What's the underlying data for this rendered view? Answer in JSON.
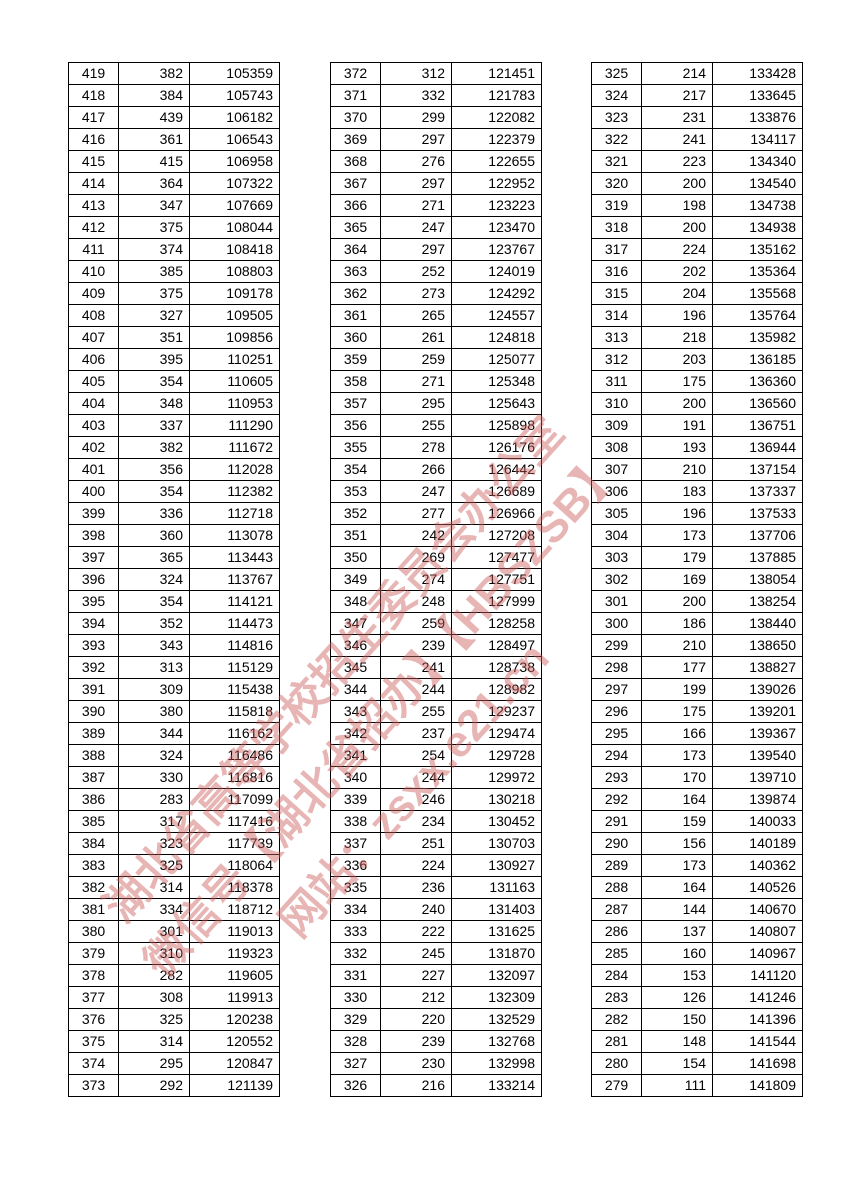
{
  "tables": [
    {
      "rows": [
        [
          419,
          382,
          105359
        ],
        [
          418,
          384,
          105743
        ],
        [
          417,
          439,
          106182
        ],
        [
          416,
          361,
          106543
        ],
        [
          415,
          415,
          106958
        ],
        [
          414,
          364,
          107322
        ],
        [
          413,
          347,
          107669
        ],
        [
          412,
          375,
          108044
        ],
        [
          411,
          374,
          108418
        ],
        [
          410,
          385,
          108803
        ],
        [
          409,
          375,
          109178
        ],
        [
          408,
          327,
          109505
        ],
        [
          407,
          351,
          109856
        ],
        [
          406,
          395,
          110251
        ],
        [
          405,
          354,
          110605
        ],
        [
          404,
          348,
          110953
        ],
        [
          403,
          337,
          111290
        ],
        [
          402,
          382,
          111672
        ],
        [
          401,
          356,
          112028
        ],
        [
          400,
          354,
          112382
        ],
        [
          399,
          336,
          112718
        ],
        [
          398,
          360,
          113078
        ],
        [
          397,
          365,
          113443
        ],
        [
          396,
          324,
          113767
        ],
        [
          395,
          354,
          114121
        ],
        [
          394,
          352,
          114473
        ],
        [
          393,
          343,
          114816
        ],
        [
          392,
          313,
          115129
        ],
        [
          391,
          309,
          115438
        ],
        [
          390,
          380,
          115818
        ],
        [
          389,
          344,
          116162
        ],
        [
          388,
          324,
          116486
        ],
        [
          387,
          330,
          116816
        ],
        [
          386,
          283,
          117099
        ],
        [
          385,
          317,
          117416
        ],
        [
          384,
          323,
          117739
        ],
        [
          383,
          325,
          118064
        ],
        [
          382,
          314,
          118378
        ],
        [
          381,
          334,
          118712
        ],
        [
          380,
          301,
          119013
        ],
        [
          379,
          310,
          119323
        ],
        [
          378,
          282,
          119605
        ],
        [
          377,
          308,
          119913
        ],
        [
          376,
          325,
          120238
        ],
        [
          375,
          314,
          120552
        ],
        [
          374,
          295,
          120847
        ],
        [
          373,
          292,
          121139
        ]
      ]
    },
    {
      "rows": [
        [
          372,
          312,
          121451
        ],
        [
          371,
          332,
          121783
        ],
        [
          370,
          299,
          122082
        ],
        [
          369,
          297,
          122379
        ],
        [
          368,
          276,
          122655
        ],
        [
          367,
          297,
          122952
        ],
        [
          366,
          271,
          123223
        ],
        [
          365,
          247,
          123470
        ],
        [
          364,
          297,
          123767
        ],
        [
          363,
          252,
          124019
        ],
        [
          362,
          273,
          124292
        ],
        [
          361,
          265,
          124557
        ],
        [
          360,
          261,
          124818
        ],
        [
          359,
          259,
          125077
        ],
        [
          358,
          271,
          125348
        ],
        [
          357,
          295,
          125643
        ],
        [
          356,
          255,
          125898
        ],
        [
          355,
          278,
          126176
        ],
        [
          354,
          266,
          126442
        ],
        [
          353,
          247,
          126689
        ],
        [
          352,
          277,
          126966
        ],
        [
          351,
          242,
          127208
        ],
        [
          350,
          269,
          127477
        ],
        [
          349,
          274,
          127751
        ],
        [
          348,
          248,
          127999
        ],
        [
          347,
          259,
          128258
        ],
        [
          346,
          239,
          128497
        ],
        [
          345,
          241,
          128738
        ],
        [
          344,
          244,
          128982
        ],
        [
          343,
          255,
          129237
        ],
        [
          342,
          237,
          129474
        ],
        [
          341,
          254,
          129728
        ],
        [
          340,
          244,
          129972
        ],
        [
          339,
          246,
          130218
        ],
        [
          338,
          234,
          130452
        ],
        [
          337,
          251,
          130703
        ],
        [
          336,
          224,
          130927
        ],
        [
          335,
          236,
          131163
        ],
        [
          334,
          240,
          131403
        ],
        [
          333,
          222,
          131625
        ],
        [
          332,
          245,
          131870
        ],
        [
          331,
          227,
          132097
        ],
        [
          330,
          212,
          132309
        ],
        [
          329,
          220,
          132529
        ],
        [
          328,
          239,
          132768
        ],
        [
          327,
          230,
          132998
        ],
        [
          326,
          216,
          133214
        ]
      ]
    },
    {
      "rows": [
        [
          325,
          214,
          133428
        ],
        [
          324,
          217,
          133645
        ],
        [
          323,
          231,
          133876
        ],
        [
          322,
          241,
          134117
        ],
        [
          321,
          223,
          134340
        ],
        [
          320,
          200,
          134540
        ],
        [
          319,
          198,
          134738
        ],
        [
          318,
          200,
          134938
        ],
        [
          317,
          224,
          135162
        ],
        [
          316,
          202,
          135364
        ],
        [
          315,
          204,
          135568
        ],
        [
          314,
          196,
          135764
        ],
        [
          313,
          218,
          135982
        ],
        [
          312,
          203,
          136185
        ],
        [
          311,
          175,
          136360
        ],
        [
          310,
          200,
          136560
        ],
        [
          309,
          191,
          136751
        ],
        [
          308,
          193,
          136944
        ],
        [
          307,
          210,
          137154
        ],
        [
          306,
          183,
          137337
        ],
        [
          305,
          196,
          137533
        ],
        [
          304,
          173,
          137706
        ],
        [
          303,
          179,
          137885
        ],
        [
          302,
          169,
          138054
        ],
        [
          301,
          200,
          138254
        ],
        [
          300,
          186,
          138440
        ],
        [
          299,
          210,
          138650
        ],
        [
          298,
          177,
          138827
        ],
        [
          297,
          199,
          139026
        ],
        [
          296,
          175,
          139201
        ],
        [
          295,
          166,
          139367
        ],
        [
          294,
          173,
          139540
        ],
        [
          293,
          170,
          139710
        ],
        [
          292,
          164,
          139874
        ],
        [
          291,
          159,
          140033
        ],
        [
          290,
          156,
          140189
        ],
        [
          289,
          173,
          140362
        ],
        [
          288,
          164,
          140526
        ],
        [
          287,
          144,
          140670
        ],
        [
          286,
          137,
          140807
        ],
        [
          285,
          160,
          140967
        ],
        [
          284,
          153,
          141120
        ],
        [
          283,
          126,
          141246
        ],
        [
          282,
          150,
          141396
        ],
        [
          281,
          148,
          141544
        ],
        [
          280,
          154,
          141698
        ],
        [
          279,
          111,
          141809
        ]
      ]
    }
  ],
  "watermark": [
    "湖北省高等学校招生委员会办公室",
    "微信号【湖北省招办】【HBSZSB】",
    "网站：zsxx.e21.cn"
  ]
}
